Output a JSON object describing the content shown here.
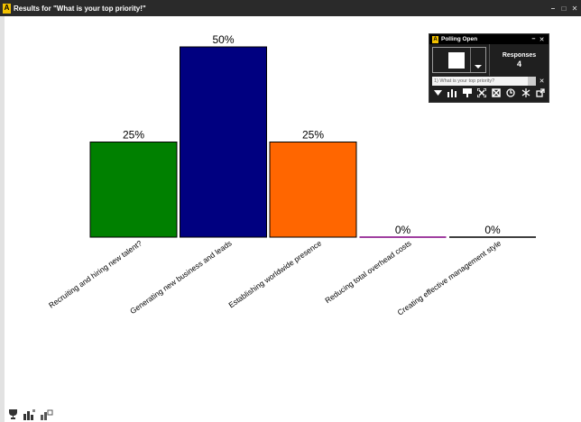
{
  "window": {
    "title": "Results for \"What is your top priority!\"",
    "controls": {
      "minimize": "–",
      "restore": "□",
      "close": "✕"
    }
  },
  "chart_data": {
    "type": "bar",
    "categories": [
      "Recruiting and hiring new talent?",
      "Generating new business and leads",
      "Establishing worldwide presence",
      "Reducing total overhead costs",
      "Creating effective management style"
    ],
    "values": [
      25,
      50,
      25,
      0,
      0
    ],
    "data_labels": [
      "25%",
      "50%",
      "25%",
      "0%",
      "0%"
    ],
    "colors": [
      "#008000",
      "#000080",
      "#ff6600",
      "#800080",
      "#000000"
    ],
    "ylim": [
      0,
      50
    ],
    "grid": false,
    "title": "",
    "xlabel": "",
    "ylabel": ""
  },
  "poll": {
    "logo": "A",
    "title": "Polling Open",
    "minimize": "–",
    "close": "✕",
    "responses_label": "Responses",
    "responses_count": "4",
    "question": "1) What is your top priority?",
    "question_close": "✕",
    "tools": [
      "dropdown-icon",
      "bar-chart-icon",
      "presentation-icon",
      "fullscreen-icon",
      "grid-icon",
      "timer-icon",
      "star-icon",
      "popout-icon"
    ]
  },
  "bottom_icons": [
    "trophy-icon",
    "bar-chart-icon",
    "chart-settings-icon"
  ]
}
